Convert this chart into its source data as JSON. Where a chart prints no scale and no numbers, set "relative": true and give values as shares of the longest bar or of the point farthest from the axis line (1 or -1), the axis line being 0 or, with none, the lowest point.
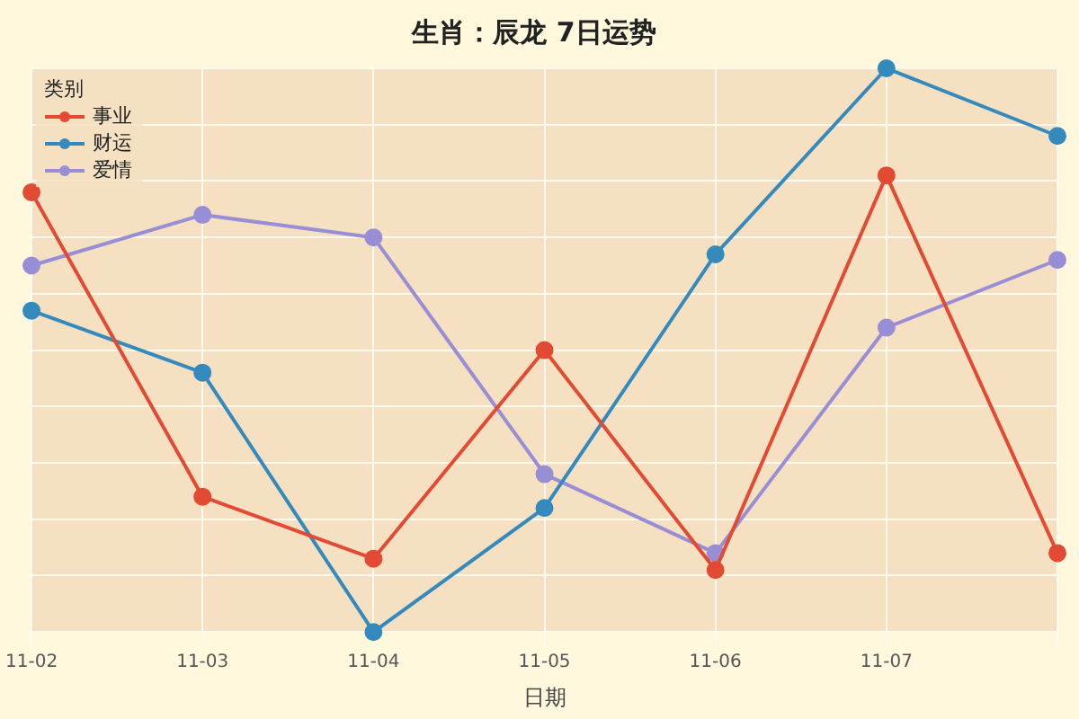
{
  "chart_data": {
    "type": "line",
    "title": "生肖：辰龙 7日运势",
    "xlabel": "日期",
    "legend_title": "类别",
    "categories": [
      "11-02",
      "11-03",
      "11-04",
      "11-05",
      "11-06",
      "11-07",
      null
    ],
    "relative": true,
    "grid": true,
    "legend": "top left",
    "marker": "circle",
    "line_style": "solid",
    "series": [
      {
        "name": "事业",
        "color": "#e24a33",
        "values": [
          0.78,
          0.24,
          0.13,
          0.5,
          0.11,
          0.81,
          0.14
        ]
      },
      {
        "name": "财运",
        "color": "#348abd",
        "values": [
          0.57,
          0.46,
          0,
          0.22,
          0.67,
          1,
          0.88
        ]
      },
      {
        "name": "爱情",
        "color": "#988ed5",
        "values": [
          0.65,
          0.74,
          0.7,
          0.28,
          0.14,
          0.54,
          0.66
        ]
      }
    ]
  }
}
